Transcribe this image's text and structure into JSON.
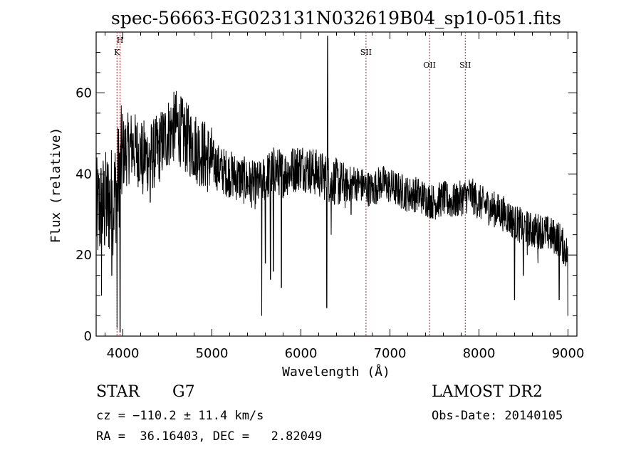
{
  "chart_data": {
    "type": "line",
    "title": "spec-56663-EG023131N032619B04_sp10-051.fits",
    "xlabel": "Wavelength (Å)",
    "ylabel": "Flux (relative)",
    "xlim": [
      3700,
      9100
    ],
    "ylim": [
      0,
      75
    ],
    "xticks": [
      4000,
      5000,
      6000,
      7000,
      8000,
      9000
    ],
    "yticks": [
      0,
      20,
      40,
      60
    ],
    "grid": false,
    "line_color": "#000000",
    "marker_color": "#b22222",
    "spectral_lines": [
      {
        "label": "H",
        "x": 3968
      },
      {
        "label": "K",
        "x": 3934
      },
      {
        "label": "SII",
        "x": 6731
      },
      {
        "label": "OII",
        "x": 7445
      },
      {
        "label": "SII",
        "x": 7846
      }
    ],
    "series": [
      {
        "x": [
          3700,
          3800,
          3900,
          4000,
          4100,
          4200,
          4300,
          4400,
          4500,
          4600,
          4700,
          4800,
          4900,
          5000,
          5100,
          5200,
          5300,
          5400,
          5500,
          5600,
          5700,
          5800,
          5900,
          6000,
          6100,
          6200,
          6300,
          6400,
          6500,
          6600,
          6700,
          6800,
          6900,
          7000,
          7100,
          7200,
          7300,
          7400,
          7500,
          7600,
          7700,
          7800,
          7900,
          8000,
          8100,
          8200,
          8300,
          8400,
          8500,
          8600,
          8700,
          8800,
          8900,
          9000
        ],
        "y": [
          30,
          32,
          34,
          45,
          47,
          45,
          44,
          46,
          50,
          52,
          49,
          47,
          45,
          43,
          41,
          40,
          39,
          38,
          37,
          39,
          41,
          40,
          41,
          42,
          41,
          40,
          39,
          38,
          37,
          38,
          37,
          36,
          38,
          37,
          36,
          35,
          35,
          34,
          33,
          34,
          33,
          34,
          35,
          33,
          32,
          31,
          30,
          28,
          27,
          26,
          26,
          25,
          24,
          20
        ],
        "features": [
          {
            "x": 3760,
            "y": 10
          },
          {
            "x": 3875,
            "y": 15
          },
          {
            "x": 3934,
            "y": 2
          },
          {
            "x": 3968,
            "y": 1
          },
          {
            "x": 4225,
            "y": 35
          },
          {
            "x": 4307,
            "y": 33
          },
          {
            "x": 5180,
            "y": 36
          },
          {
            "x": 5560,
            "y": 5
          },
          {
            "x": 5600,
            "y": 18
          },
          {
            "x": 5658,
            "y": 14
          },
          {
            "x": 5690,
            "y": 16
          },
          {
            "x": 5780,
            "y": 12
          },
          {
            "x": 6290,
            "y": 7
          },
          {
            "x": 6300,
            "y": 74
          },
          {
            "x": 6340,
            "y": 25
          },
          {
            "x": 6563,
            "y": 30
          },
          {
            "x": 8400,
            "y": 9
          },
          {
            "x": 8498,
            "y": 15
          },
          {
            "x": 8542,
            "y": 20
          },
          {
            "x": 8662,
            "y": 18
          },
          {
            "x": 8900,
            "y": 9
          },
          {
            "x": 9000,
            "y": 5
          }
        ]
      }
    ]
  },
  "info": {
    "class_label": "STAR",
    "subclass_label": "G7",
    "survey_label": "LAMOST DR2",
    "cz_text": "cz = −110.2 ± 11.4 km/s",
    "obs_date_text": "Obs-Date: 20140105",
    "coords_text": "RA =  36.16403, DEC =   2.82049"
  }
}
